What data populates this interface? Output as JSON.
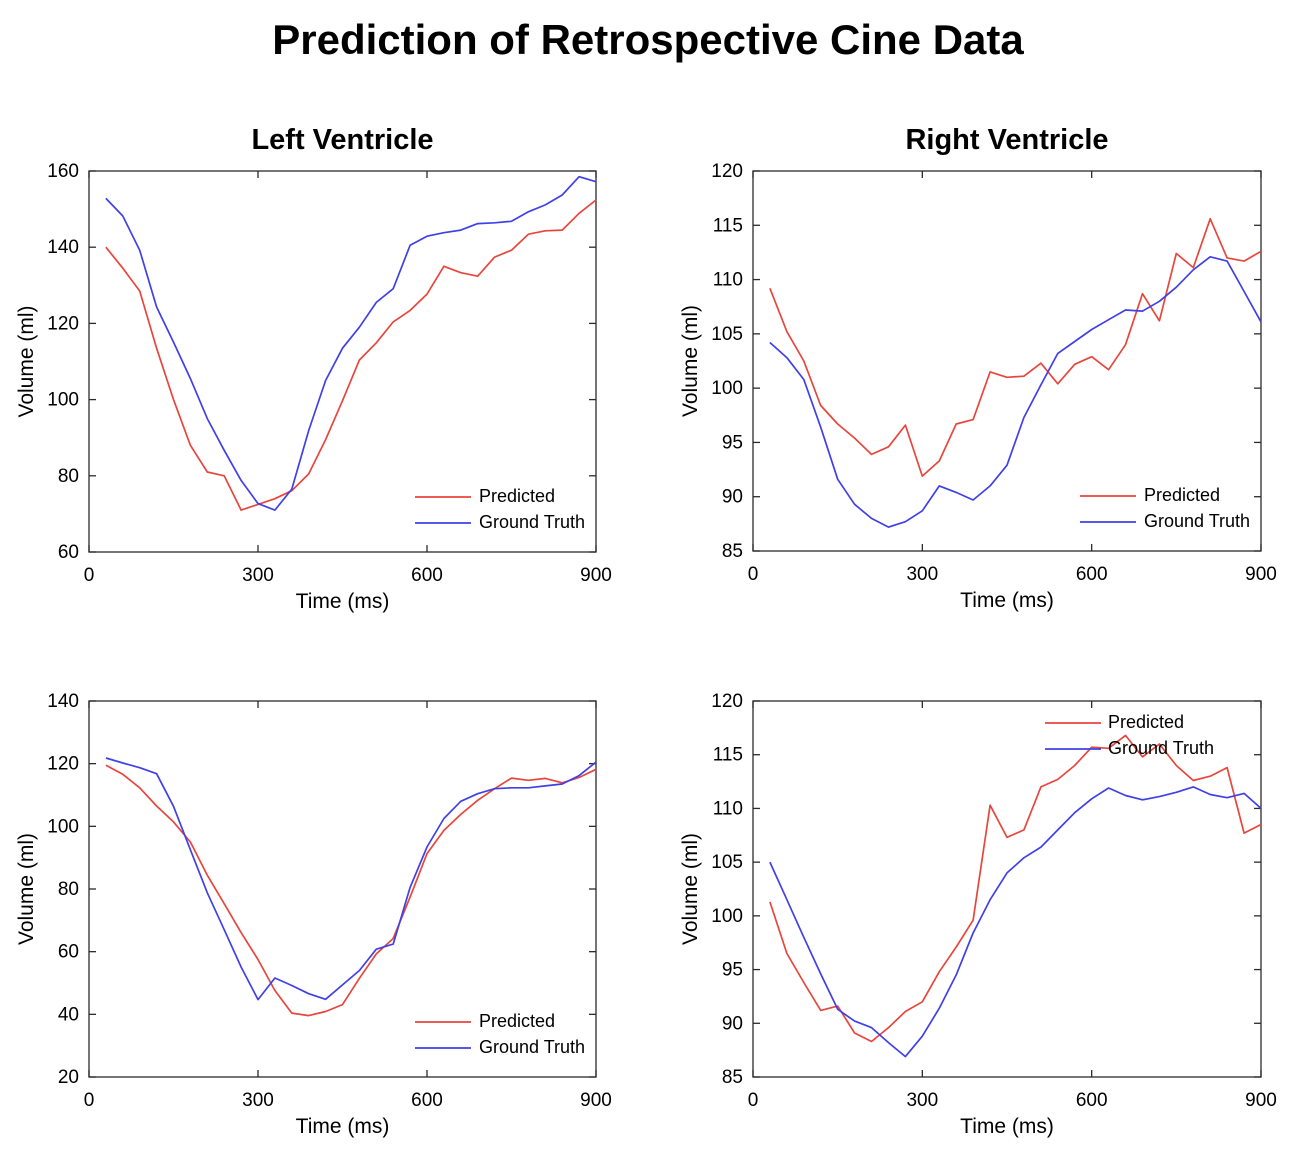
{
  "figure": {
    "title": "Prediction of Retrospective Cine Data",
    "background_color": "#ffffff",
    "axis_color": "#2b2b2b",
    "text_color": "#000000",
    "predicted_color": "#e8463c",
    "ground_truth_color": "#4040e8"
  },
  "chart_data": [
    {
      "id": "left-ventricle-top",
      "type": "line",
      "title": "Left Ventricle",
      "xlabel": "Time (ms)",
      "ylabel": "Volume (ml)",
      "xlim": [
        0,
        900
      ],
      "ylim": [
        60,
        160
      ],
      "xticks": [
        0,
        300,
        600,
        900
      ],
      "yticks": [
        60,
        80,
        100,
        120,
        140,
        160
      ],
      "grid": false,
      "legend_position": "southeast",
      "x": [
        30,
        60,
        90,
        120,
        150,
        180,
        210,
        240,
        270,
        300,
        330,
        360,
        390,
        420,
        450,
        480,
        510,
        540,
        570,
        600,
        630,
        660,
        690,
        720,
        750,
        780,
        810,
        840,
        870,
        900
      ],
      "series": [
        {
          "name": "Predicted",
          "color": "#e8463c",
          "values": [
            140,
            134.5,
            128.5,
            113.5,
            100,
            88,
            81,
            80,
            71,
            72.5,
            74,
            76.1,
            80.5,
            89.5,
            99.7,
            110.4,
            114.9,
            120.4,
            123.4,
            127.7,
            135,
            133.3,
            132.4,
            137.4,
            139.2,
            143.4,
            144.3,
            144.5,
            148.9,
            152.4
          ]
        },
        {
          "name": "Ground Truth",
          "color": "#4040e8",
          "values": [
            152.8,
            148.2,
            139.2,
            124.3,
            115.1,
            105.5,
            95,
            86.7,
            78.8,
            72.7,
            71,
            76.5,
            91.9,
            105,
            113.5,
            119,
            125.5,
            129.1,
            140.5,
            142.9,
            143.8,
            144.5,
            146.2,
            146.4,
            146.8,
            149.3,
            151.1,
            153.7,
            158.5,
            157.2
          ]
        }
      ]
    },
    {
      "id": "right-ventricle-top",
      "type": "line",
      "title": "Right Ventricle",
      "xlabel": "Time (ms)",
      "ylabel": "Volume (ml)",
      "xlim": [
        0,
        900
      ],
      "ylim": [
        85,
        120
      ],
      "xticks": [
        0,
        300,
        600,
        900
      ],
      "yticks": [
        85,
        90,
        95,
        100,
        105,
        110,
        115,
        120
      ],
      "grid": false,
      "legend_position": "southeast",
      "x": [
        30,
        60,
        90,
        120,
        150,
        180,
        210,
        240,
        270,
        300,
        330,
        360,
        390,
        420,
        450,
        480,
        510,
        540,
        570,
        600,
        630,
        660,
        690,
        720,
        750,
        780,
        810,
        840,
        870,
        900
      ],
      "series": [
        {
          "name": "Predicted",
          "color": "#e8463c",
          "values": [
            109.2,
            105.2,
            102.5,
            98.4,
            96.7,
            95.4,
            93.9,
            94.6,
            96.6,
            91.9,
            93.3,
            96.7,
            97.1,
            101.5,
            101,
            101.1,
            102.3,
            100.4,
            102.2,
            102.9,
            101.7,
            104,
            108.7,
            106.2,
            112.4,
            111.1,
            115.6,
            112,
            111.7,
            112.6
          ]
        },
        {
          "name": "Ground Truth",
          "color": "#4040e8",
          "values": [
            104.2,
            102.8,
            100.8,
            96.4,
            91.6,
            89.3,
            88,
            87.2,
            87.7,
            88.7,
            91,
            90.4,
            89.7,
            91,
            92.9,
            97.3,
            100.3,
            103.2,
            104.3,
            105.4,
            106.3,
            107.2,
            107.1,
            108,
            109.3,
            110.9,
            112.1,
            111.7,
            108.9,
            106.1
          ]
        }
      ]
    },
    {
      "id": "left-ventricle-bottom",
      "type": "line",
      "title": "",
      "xlabel": "Time (ms)",
      "ylabel": "Volume (ml)",
      "xlim": [
        0,
        900
      ],
      "ylim": [
        20,
        140
      ],
      "xticks": [
        0,
        300,
        600,
        900
      ],
      "yticks": [
        20,
        40,
        60,
        80,
        100,
        120,
        140
      ],
      "grid": false,
      "legend_position": "southeast",
      "x": [
        30,
        60,
        90,
        120,
        150,
        180,
        210,
        240,
        270,
        300,
        330,
        360,
        390,
        420,
        450,
        480,
        510,
        540,
        570,
        600,
        630,
        660,
        690,
        720,
        750,
        780,
        810,
        840,
        870,
        900
      ],
      "series": [
        {
          "name": "Predicted",
          "color": "#e8463c",
          "values": [
            119.5,
            116.6,
            112.3,
            106.5,
            101.4,
            95,
            84.4,
            75.3,
            66.1,
            57.5,
            47.6,
            40.4,
            39.6,
            40.9,
            43.1,
            51.5,
            59.3,
            64.2,
            77.4,
            91.3,
            98.7,
            103.8,
            108.3,
            112,
            115.4,
            114.7,
            115.3,
            113.9,
            115.6,
            118.2
          ]
        },
        {
          "name": "Ground Truth",
          "color": "#4040e8",
          "values": [
            121.8,
            120.2,
            118.7,
            116.8,
            106.4,
            92.5,
            78.8,
            67,
            55.1,
            44.7,
            51.6,
            49.2,
            46.6,
            44.8,
            49.4,
            54,
            60.8,
            62.4,
            80.5,
            93.4,
            102.5,
            108,
            110.4,
            112,
            112.3,
            112.3,
            112.9,
            113.5,
            116.2,
            120.5
          ]
        }
      ]
    },
    {
      "id": "right-ventricle-bottom",
      "type": "line",
      "title": "",
      "xlabel": "Time (ms)",
      "ylabel": "Volume (ml)",
      "xlim": [
        0,
        900
      ],
      "ylim": [
        85,
        120
      ],
      "xticks": [
        0,
        300,
        600,
        900
      ],
      "yticks": [
        85,
        90,
        95,
        100,
        105,
        110,
        115,
        120
      ],
      "grid": false,
      "legend_position": "northeast",
      "x": [
        30,
        60,
        90,
        120,
        150,
        180,
        210,
        240,
        270,
        300,
        330,
        360,
        390,
        420,
        450,
        480,
        510,
        540,
        570,
        600,
        630,
        660,
        690,
        720,
        750,
        780,
        810,
        840,
        870,
        900
      ],
      "series": [
        {
          "name": "Predicted",
          "color": "#e8463c",
          "values": [
            101.3,
            96.5,
            93.8,
            91.2,
            91.6,
            89.1,
            88.3,
            89.6,
            91.1,
            92,
            94.8,
            97.1,
            99.6,
            110.3,
            107.3,
            108,
            112,
            112.7,
            114,
            115.7,
            115.6,
            116.8,
            114.8,
            116,
            114,
            112.6,
            113,
            113.8,
            107.7,
            108.5
          ]
        },
        {
          "name": "Ground Truth",
          "color": "#4040e8",
          "values": [
            105,
            101.5,
            98,
            94.6,
            91.3,
            90.2,
            89.6,
            88.2,
            86.9,
            88.8,
            91.4,
            94.5,
            98.4,
            101.5,
            104,
            105.4,
            106.4,
            108,
            109.6,
            110.9,
            111.9,
            111.2,
            110.8,
            111.1,
            111.5,
            112,
            111.3,
            111,
            111.4,
            110
          ]
        }
      ]
    }
  ]
}
